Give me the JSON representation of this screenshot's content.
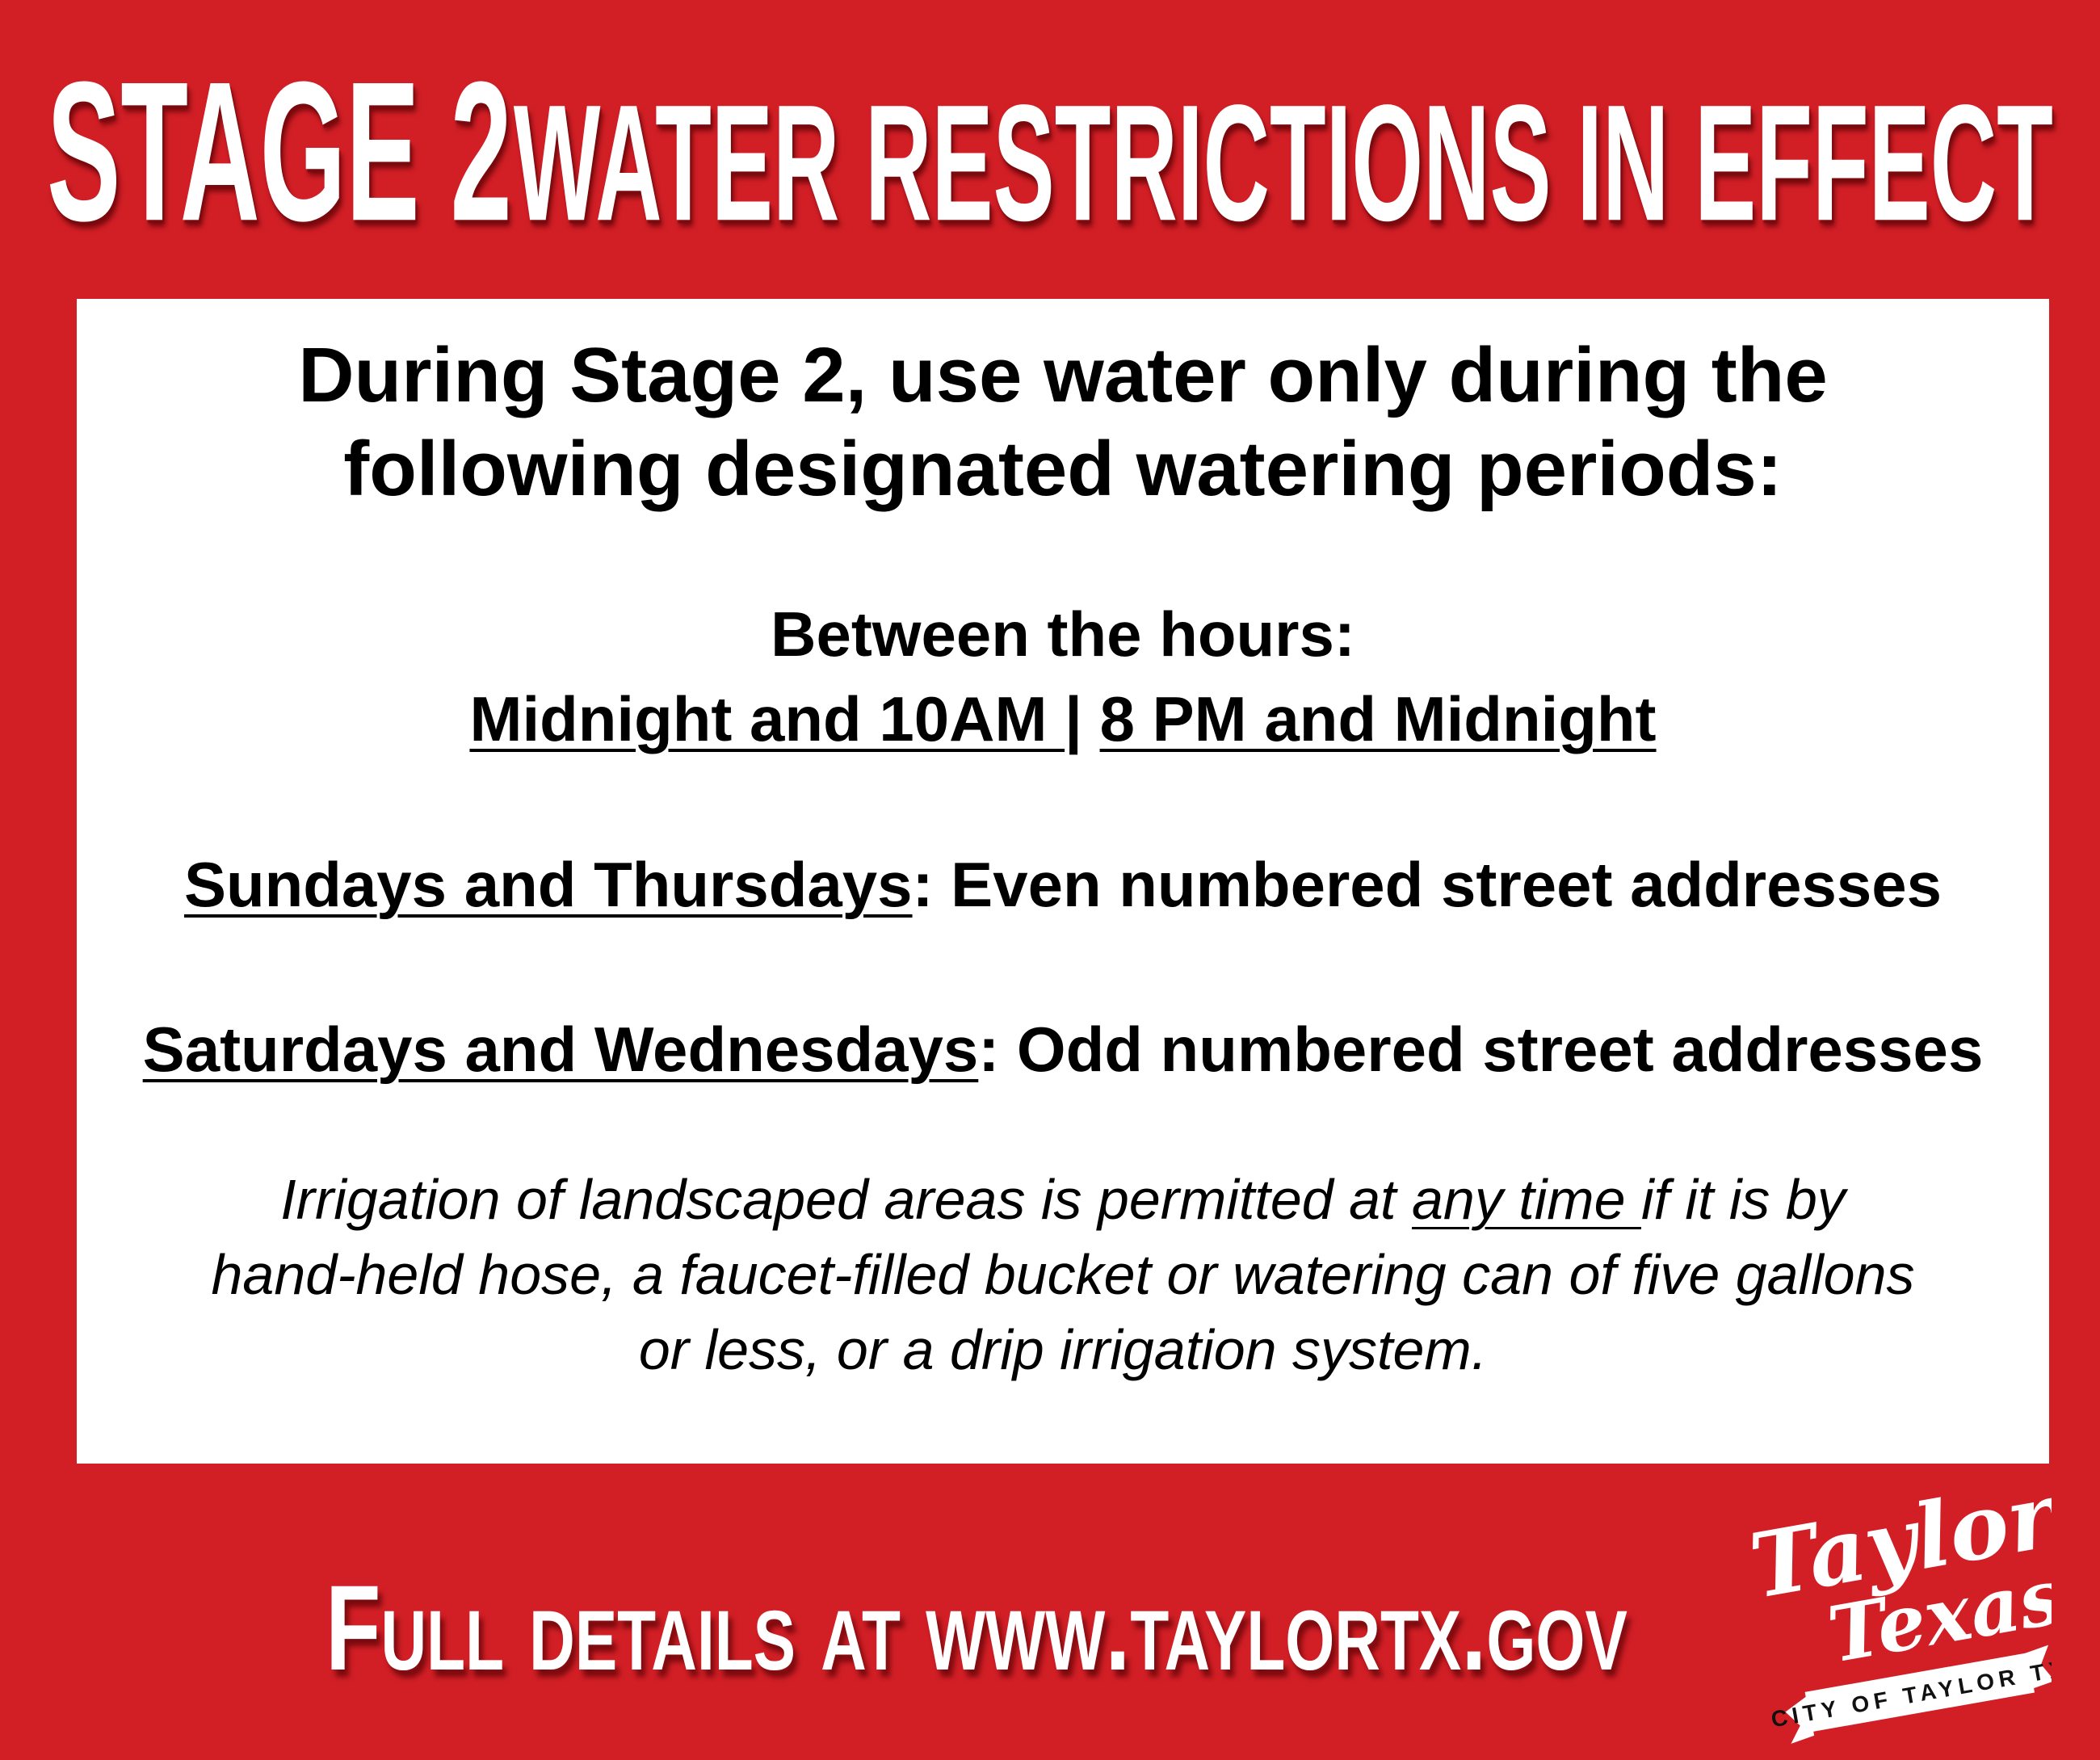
{
  "header": {
    "title_part1": "STAGE 2",
    "title_part2": "WATER RESTRICTIONS IN EFFECT"
  },
  "notice": {
    "intro_line1": "During Stage 2, use water only during the",
    "intro_line2": "following designated watering periods:",
    "hours_label": "Between the hours:",
    "hours_period1": "Midnight and 10AM ",
    "hours_separator": " | ",
    "hours_period2": "8 PM and Midnight",
    "even_days": "Sundays and Thursdays",
    "even_text": ": Even numbered street addresses",
    "odd_days": "Saturdays and Wednesdays",
    "odd_text": ": Odd numbered street addresses",
    "irrigation_line1_a": "Irrigation of landscaped areas is permitted at ",
    "irrigation_line1_u": "any time ",
    "irrigation_line1_b": "if it is by",
    "irrigation_line2": "hand-held hose, a faucet-filled bucket or watering can of five gallons",
    "irrigation_line3": "or less, or a drip irrigation system."
  },
  "footer": {
    "details": "Full details at www.taylortx.gov"
  },
  "logo": {
    "script_top": "Taylor",
    "script_bottom": "Texas",
    "banner": "CITY OF TAYLOR TX"
  },
  "colors": {
    "background": "#d21f26",
    "panel": "#ffffff",
    "text": "#000000"
  }
}
